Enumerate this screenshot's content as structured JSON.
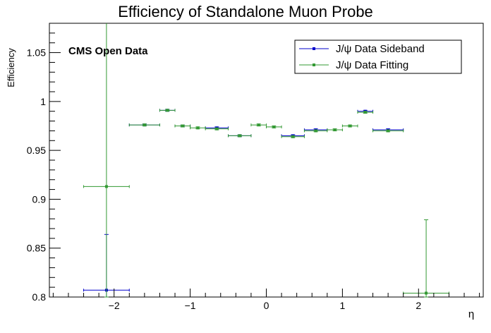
{
  "chart_data": {
    "type": "scatter",
    "title": "Efficiency of Standalone Muon Probe",
    "xlabel": "η",
    "ylabel": "Efficiency",
    "annotation": "CMS Open Data",
    "xlim": [
      -2.85,
      2.85
    ],
    "ylim": [
      0.8,
      1.08
    ],
    "x_ticks": [
      -2,
      -1,
      0,
      1,
      2
    ],
    "x_tick_labels": [
      "−2",
      "−1",
      "0",
      "1",
      "2"
    ],
    "y_ticks": [
      0.8,
      0.85,
      0.9,
      0.95,
      1.0,
      1.05
    ],
    "y_tick_labels": [
      "0.8",
      "0.85",
      "0.9",
      "0.95",
      "1",
      "1.05"
    ],
    "legend_position": "top-right",
    "series": [
      {
        "name": "J/ψ Data Sideband",
        "color": "#0000cc",
        "points": [
          {
            "x": -2.1,
            "xerr": 0.3,
            "y": 0.807,
            "ylo": 0.007,
            "yhi": 0.057
          },
          {
            "x": -1.6,
            "xerr": 0.2,
            "y": 0.976,
            "ylo": 0.001,
            "yhi": 0.001
          },
          {
            "x": -1.3,
            "xerr": 0.1,
            "y": 0.991,
            "ylo": 0.001,
            "yhi": 0.001
          },
          {
            "x": -1.1,
            "xerr": 0.1,
            "y": 0.975,
            "ylo": 0.001,
            "yhi": 0.001
          },
          {
            "x": -0.65,
            "xerr": 0.15,
            "y": 0.973,
            "ylo": 0.001,
            "yhi": 0.001
          },
          {
            "x": -0.35,
            "xerr": 0.15,
            "y": 0.965,
            "ylo": 0.001,
            "yhi": 0.001
          },
          {
            "x": 0.35,
            "xerr": 0.15,
            "y": 0.965,
            "ylo": 0.001,
            "yhi": 0.001
          },
          {
            "x": 0.65,
            "xerr": 0.15,
            "y": 0.971,
            "ylo": 0.001,
            "yhi": 0.001
          },
          {
            "x": 1.3,
            "xerr": 0.1,
            "y": 0.99,
            "ylo": 0.001,
            "yhi": 0.001
          },
          {
            "x": 1.6,
            "xerr": 0.2,
            "y": 0.971,
            "ylo": 0.001,
            "yhi": 0.001
          }
        ]
      },
      {
        "name": "J/ψ Data Fitting",
        "color": "#339933",
        "points": [
          {
            "x": -2.1,
            "xerr": 0.3,
            "y": 0.913,
            "ylo": 0.113,
            "yhi": 0.175
          },
          {
            "x": -1.6,
            "xerr": 0.2,
            "y": 0.976,
            "ylo": 0.001,
            "yhi": 0.001
          },
          {
            "x": -1.3,
            "xerr": 0.1,
            "y": 0.991,
            "ylo": 0.001,
            "yhi": 0.001
          },
          {
            "x": -1.1,
            "xerr": 0.1,
            "y": 0.975,
            "ylo": 0.001,
            "yhi": 0.001
          },
          {
            "x": -0.9,
            "xerr": 0.1,
            "y": 0.973,
            "ylo": 0.001,
            "yhi": 0.001
          },
          {
            "x": -0.65,
            "xerr": 0.15,
            "y": 0.972,
            "ylo": 0.001,
            "yhi": 0.001
          },
          {
            "x": -0.35,
            "xerr": 0.15,
            "y": 0.965,
            "ylo": 0.001,
            "yhi": 0.001
          },
          {
            "x": -0.1,
            "xerr": 0.1,
            "y": 0.976,
            "ylo": 0.001,
            "yhi": 0.001
          },
          {
            "x": 0.1,
            "xerr": 0.1,
            "y": 0.974,
            "ylo": 0.001,
            "yhi": 0.001
          },
          {
            "x": 0.35,
            "xerr": 0.15,
            "y": 0.964,
            "ylo": 0.001,
            "yhi": 0.001
          },
          {
            "x": 0.65,
            "xerr": 0.15,
            "y": 0.97,
            "ylo": 0.001,
            "yhi": 0.001
          },
          {
            "x": 0.9,
            "xerr": 0.1,
            "y": 0.971,
            "ylo": 0.001,
            "yhi": 0.001
          },
          {
            "x": 1.1,
            "xerr": 0.1,
            "y": 0.975,
            "ylo": 0.001,
            "yhi": 0.001
          },
          {
            "x": 1.3,
            "xerr": 0.1,
            "y": 0.989,
            "ylo": 0.001,
            "yhi": 0.001
          },
          {
            "x": 1.6,
            "xerr": 0.2,
            "y": 0.97,
            "ylo": 0.001,
            "yhi": 0.001
          },
          {
            "x": 2.1,
            "xerr": 0.3,
            "y": 0.804,
            "ylo": 0.004,
            "yhi": 0.075
          }
        ]
      }
    ]
  }
}
